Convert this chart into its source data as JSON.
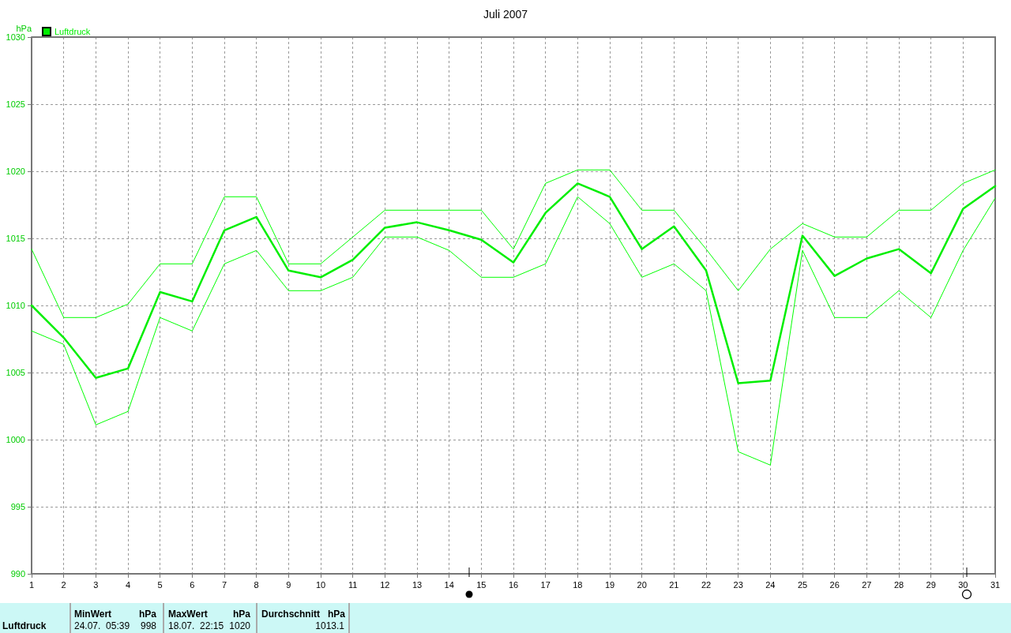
{
  "chart_data": {
    "type": "line",
    "title": "Juli 2007",
    "ylabel": "hPa",
    "x": [
      1,
      2,
      3,
      4,
      5,
      6,
      7,
      8,
      9,
      10,
      11,
      12,
      13,
      14,
      15,
      16,
      17,
      18,
      19,
      20,
      21,
      22,
      23,
      24,
      25,
      26,
      27,
      28,
      29,
      30,
      31
    ],
    "series": [
      {
        "color": "#00ff00",
        "values": [
          1014.2,
          1009.1,
          1009.1,
          1010.1,
          1013.1,
          1013.1,
          1018.1,
          1018.1,
          1013.1,
          1013.1,
          1015.1,
          1017.1,
          1017.1,
          1017.1,
          1017.1,
          1014.2,
          1019.1,
          1020.1,
          1020.1,
          1017.1,
          1017.1,
          1014.2,
          1011.1,
          1014.2,
          1016.1,
          1015.1,
          1015.1,
          1017.1,
          1017.1,
          1019.1,
          1020.1
        ]
      },
      {
        "name": "Luftdruck",
        "color": "#00ee00",
        "values": [
          1010.0,
          1007.6,
          1004.6,
          1005.3,
          1011.0,
          1010.3,
          1015.6,
          1016.6,
          1012.6,
          1012.1,
          1013.4,
          1015.8,
          1016.2,
          1015.6,
          1014.9,
          1013.2,
          1016.9,
          1019.1,
          1018.1,
          1014.2,
          1015.9,
          1012.6,
          1004.2,
          1004.4,
          1015.2,
          1012.2,
          1013.5,
          1014.2,
          1012.4,
          1017.2,
          1018.9
        ]
      },
      {
        "color": "#00ff00",
        "values": [
          1008.1,
          1007.1,
          1001.1,
          1002.1,
          1009.1,
          1008.1,
          1013.1,
          1014.1,
          1011.1,
          1011.1,
          1012.1,
          1015.1,
          1015.1,
          1014.1,
          1012.1,
          1012.1,
          1013.1,
          1018.1,
          1016.1,
          1012.1,
          1013.1,
          1011.1,
          999.1,
          998.1,
          1014.1,
          1009.1,
          1009.1,
          1011.1,
          1009.1,
          1014.1,
          1018.0
        ]
      }
    ],
    "xlim": [
      1,
      31
    ],
    "xticks": [
      1,
      2,
      3,
      4,
      5,
      6,
      7,
      8,
      9,
      10,
      11,
      12,
      13,
      14,
      15,
      16,
      17,
      18,
      19,
      20,
      21,
      22,
      23,
      24,
      25,
      26,
      27,
      28,
      29,
      30,
      31
    ],
    "ylim": [
      990,
      1030
    ],
    "yticks": [
      990,
      995,
      1000,
      1005,
      1010,
      1015,
      1020,
      1025,
      1030
    ],
    "grid": true,
    "legend": "top left",
    "marker": "none",
    "line_style": "solid",
    "annotations": [
      "Luftdruck",
      "MinWert",
      "hPa",
      "24.07.  05:39",
      "998",
      "MaxWert",
      "hPa",
      "18.07.  22:15",
      "1020",
      "Durchschnitt",
      "hPa",
      "1013.1"
    ]
  }
}
